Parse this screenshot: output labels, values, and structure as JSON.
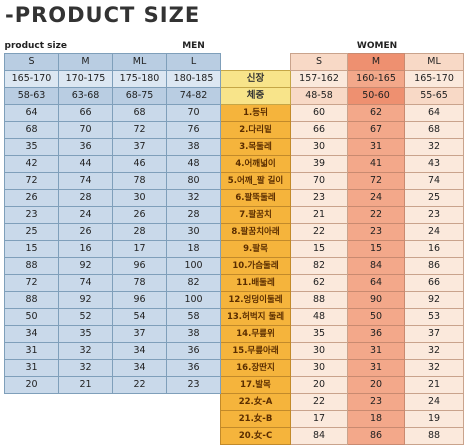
{
  "title": "-PRODUCT SIZE",
  "captions": {
    "product_size": "product size",
    "men": "MEN",
    "women": "WOMEN"
  },
  "men": {
    "headers": [
      "S",
      "M",
      "ML",
      "L"
    ],
    "height": [
      "165-170",
      "170-175",
      "175-180",
      "180-185"
    ],
    "weight": [
      "58-63",
      "63-68",
      "68-75",
      "74-82"
    ],
    "rows": [
      [
        "64",
        "66",
        "68",
        "70"
      ],
      [
        "68",
        "70",
        "72",
        "76"
      ],
      [
        "35",
        "36",
        "37",
        "38"
      ],
      [
        "42",
        "44",
        "46",
        "48"
      ],
      [
        "72",
        "74",
        "78",
        "80"
      ],
      [
        "26",
        "28",
        "30",
        "32"
      ],
      [
        "23",
        "24",
        "26",
        "28"
      ],
      [
        "25",
        "26",
        "28",
        "30"
      ],
      [
        "15",
        "16",
        "17",
        "18"
      ],
      [
        "88",
        "92",
        "96",
        "100"
      ],
      [
        "72",
        "74",
        "78",
        "82"
      ],
      [
        "88",
        "92",
        "96",
        "100"
      ],
      [
        "50",
        "52",
        "54",
        "58"
      ],
      [
        "34",
        "35",
        "37",
        "38"
      ],
      [
        "31",
        "32",
        "34",
        "36"
      ],
      [
        "31",
        "32",
        "34",
        "36"
      ],
      [
        "20",
        "21",
        "22",
        "23"
      ]
    ]
  },
  "labels": {
    "height": "신장",
    "weight": "체중",
    "items": [
      "1.등뒤",
      "2.다리밑",
      "3.목둘레",
      "4.어깨넓이",
      "5.어깨_팔 길이",
      "6.팔뚝둘레",
      "7.팔꿈치",
      "8.팔꿈치아래",
      "9.팔목",
      "10.가슴둘레",
      "11.배둘레",
      "12.엉덩이둘레",
      "13.허벅지 둘레",
      "14.무릎위",
      "15.무릎아래",
      "16.장딴지",
      "17.발목",
      "22.女-A",
      "21.女-B",
      "20.女-C"
    ]
  },
  "women": {
    "headers": [
      "S",
      "M",
      "ML"
    ],
    "height": [
      "157-162",
      "160-165",
      "165-170"
    ],
    "weight": [
      "48-58",
      "50-60",
      "55-65"
    ],
    "rows": [
      [
        "60",
        "62",
        "64"
      ],
      [
        "66",
        "67",
        "68"
      ],
      [
        "30",
        "31",
        "32"
      ],
      [
        "39",
        "41",
        "43"
      ],
      [
        "70",
        "72",
        "74"
      ],
      [
        "23",
        "24",
        "25"
      ],
      [
        "21",
        "22",
        "23"
      ],
      [
        "22",
        "23",
        "24"
      ],
      [
        "15",
        "15",
        "16"
      ],
      [
        "82",
        "84",
        "86"
      ],
      [
        "62",
        "64",
        "66"
      ],
      [
        "88",
        "90",
        "92"
      ],
      [
        "48",
        "50",
        "53"
      ],
      [
        "35",
        "36",
        "37"
      ],
      [
        "30",
        "31",
        "32"
      ],
      [
        "30",
        "31",
        "32"
      ],
      [
        "20",
        "20",
        "21"
      ],
      [
        "22",
        "23",
        "24"
      ],
      [
        "17",
        "18",
        "19"
      ],
      [
        "84",
        "86",
        "88"
      ]
    ]
  }
}
